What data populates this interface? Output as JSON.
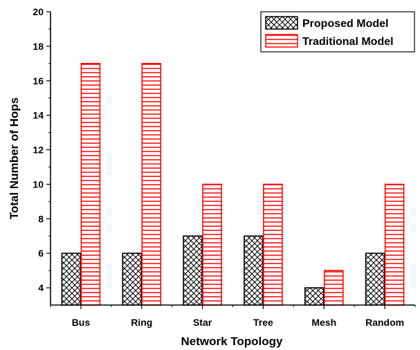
{
  "chart_data": {
    "type": "bar",
    "title": "",
    "xlabel": "Network Topology",
    "ylabel": "Total Number of Hops",
    "categories": [
      "Bus",
      "Ring",
      "Star",
      "Tree",
      "Mesh",
      "Random"
    ],
    "series": [
      {
        "name": "Proposed Model",
        "values": [
          6,
          6,
          7,
          7,
          4,
          6
        ],
        "pattern": "crosshatch",
        "color": "#000000"
      },
      {
        "name": "Traditional Model",
        "values": [
          17,
          17,
          10,
          10,
          5,
          10
        ],
        "pattern": "horizontal-lines",
        "color": "#ff0000"
      }
    ],
    "ylim": [
      3,
      20
    ],
    "yticks": [
      4,
      6,
      8,
      10,
      12,
      14,
      16,
      18,
      20
    ],
    "grid": false,
    "legend": "top-right"
  }
}
